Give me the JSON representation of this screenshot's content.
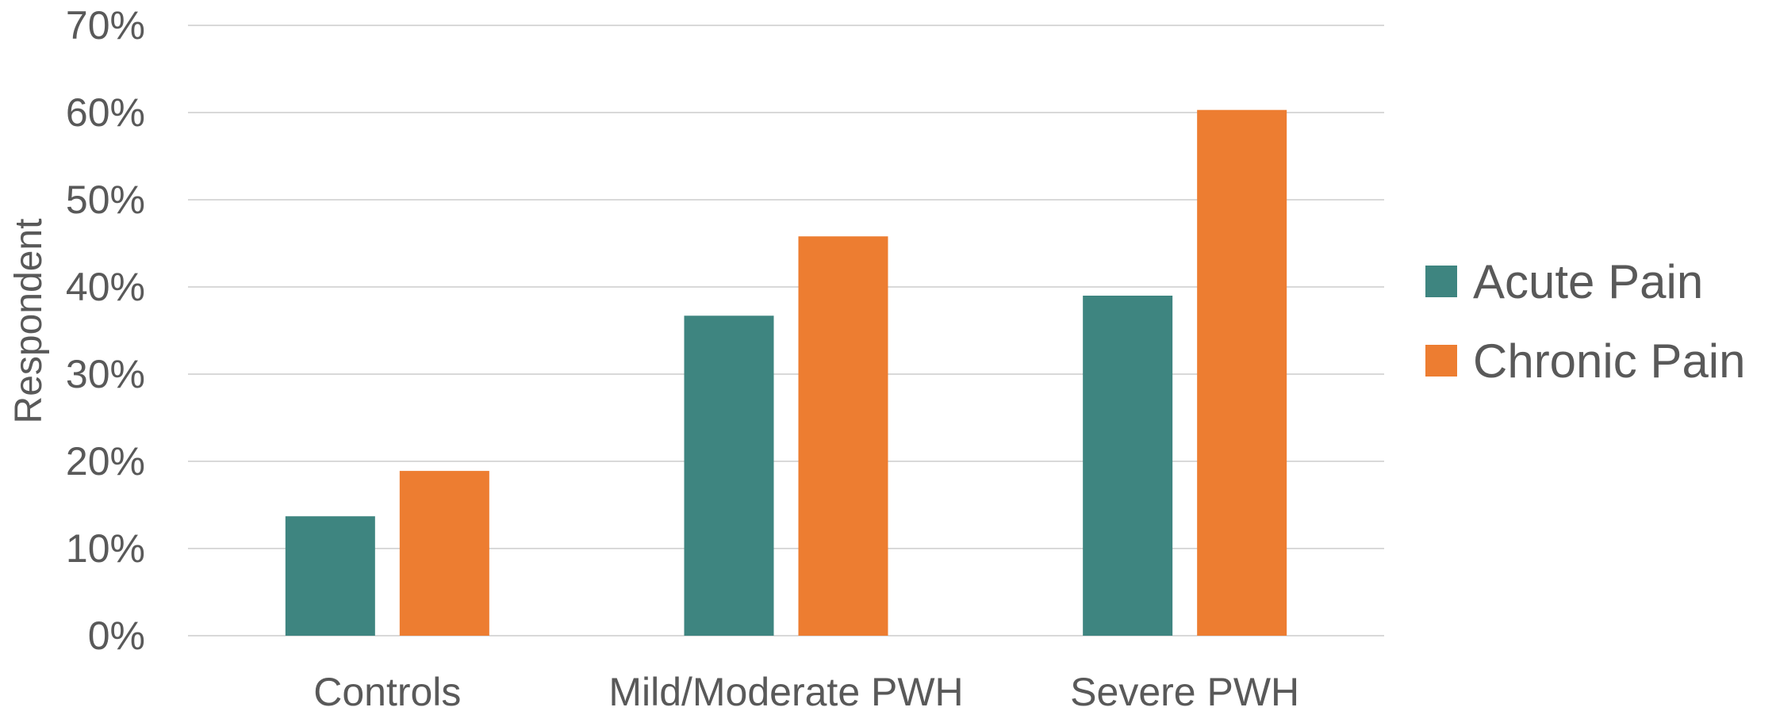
{
  "chart_data": {
    "type": "bar",
    "categories": [
      "Controls",
      "Mild/Moderate PWH",
      "Severe PWH"
    ],
    "series": [
      {
        "name": "Acute Pain",
        "values": [
          13.7,
          36.7,
          39.0
        ],
        "color": "#3e8580"
      },
      {
        "name": "Chronic Pain",
        "values": [
          18.9,
          45.8,
          60.3
        ],
        "color": "#ed7d31"
      }
    ],
    "y_ticks": [
      "0%",
      "10%",
      "20%",
      "30%",
      "40%",
      "50%",
      "60%",
      "70%"
    ],
    "ylim": [
      0,
      70
    ],
    "ylabel": "Respondent",
    "xlabel": "",
    "title": "",
    "grid": true,
    "legend_position": "right"
  }
}
